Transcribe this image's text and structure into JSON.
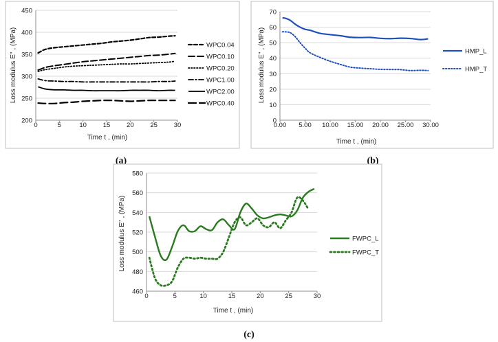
{
  "chart_data": [
    {
      "panel": "(a)",
      "type": "line",
      "xlabel": "Time  t , (min)",
      "ylabel": "Loss modulus E'' , (MPa)",
      "xlim": [
        0,
        30
      ],
      "ylim": [
        200,
        450
      ],
      "xticks": [
        "0",
        "5",
        "10",
        "15",
        "20",
        "25",
        "30"
      ],
      "yticks": [
        "200",
        "250",
        "300",
        "350",
        "400",
        "450"
      ],
      "grid": "horizontal",
      "legend": "right",
      "colors": {
        "line": "#000000",
        "grid": "#d9d9d9",
        "frame": "#bfbfbf"
      },
      "x": [
        0.5,
        2,
        4,
        6,
        8,
        10,
        12,
        14,
        16,
        18,
        20,
        22,
        24,
        26,
        28,
        29.5
      ],
      "series": [
        {
          "name": "WPC0.04",
          "dash": "5,3",
          "width": 2.2,
          "values": [
            353,
            361,
            365,
            367,
            369,
            371,
            373,
            375,
            378,
            380,
            382,
            385,
            388,
            389,
            391,
            392
          ]
        },
        {
          "name": "WPC0.10",
          "dash": "9,4",
          "width": 2.0,
          "values": [
            314,
            320,
            324,
            327,
            330,
            333,
            335,
            337,
            339,
            341,
            343,
            345,
            347,
            348,
            350,
            352
          ]
        },
        {
          "name": "WPC0.20",
          "dash": "1.5,2.5",
          "width": 1.8,
          "values": [
            311,
            315,
            318,
            321,
            323,
            324,
            325,
            326,
            327,
            328,
            328,
            329,
            330,
            331,
            332,
            334
          ]
        },
        {
          "name": "WPC1.00",
          "dash": "7,3,2,3",
          "width": 1.8,
          "values": [
            294,
            290,
            289,
            288,
            288,
            287,
            287,
            287,
            287,
            287,
            287,
            287,
            287,
            288,
            288,
            289
          ]
        },
        {
          "name": "WPC2.00",
          "dash": "",
          "width": 1.8,
          "values": [
            276,
            271,
            269,
            269,
            268,
            268,
            267,
            267,
            267,
            267,
            268,
            268,
            268,
            267,
            268,
            268
          ]
        },
        {
          "name": "WPC0.40",
          "dash": "11,5",
          "width": 2.2,
          "values": [
            239,
            238,
            238,
            240,
            241,
            243,
            244,
            245,
            245,
            244,
            243,
            244,
            245,
            245,
            245,
            245
          ]
        }
      ]
    },
    {
      "panel": "(b)",
      "type": "line",
      "xlabel": "Time  t , (min)",
      "ylabel": "Loss modulus E'' , (MPa)",
      "xlim": [
        0,
        30
      ],
      "ylim": [
        0,
        70
      ],
      "xticks": [
        "0.00",
        "5.00",
        "10.00",
        "15.00",
        "20.00",
        "25.00",
        "30.00"
      ],
      "yticks": [
        "0",
        "10",
        "20",
        "30",
        "40",
        "50",
        "60",
        "70"
      ],
      "grid": "horizontal",
      "legend": "right",
      "colors": {
        "line": "#1f4fbf",
        "grid": "#d9d9d9",
        "frame": "#bfbfbf"
      },
      "x": [
        0.5,
        1,
        2,
        3,
        4,
        5,
        6,
        8,
        10,
        12,
        14,
        16,
        18,
        20,
        22,
        24,
        26,
        28,
        29.5
      ],
      "series": [
        {
          "name": "HMP_L",
          "dash": "",
          "width": 2.2,
          "values": [
            66,
            65.8,
            64.5,
            62,
            60,
            58.6,
            58,
            56,
            55.2,
            54.5,
            53.5,
            53.3,
            53.4,
            52.8,
            52.6,
            52.9,
            52.7,
            52,
            52.5
          ]
        },
        {
          "name": "HMP_T",
          "dash": "1.5,2.5",
          "width": 2.0,
          "values": [
            57,
            57,
            56.5,
            54,
            50,
            46.5,
            43.5,
            40.5,
            38,
            36,
            34.2,
            33.6,
            33.2,
            32.8,
            32.7,
            32.6,
            32,
            32.2,
            32
          ]
        }
      ]
    },
    {
      "panel": "(c)",
      "type": "line",
      "xlabel": "Time  t , (min)",
      "ylabel": "Loss modulus E'' , (MPa)",
      "xlim": [
        0,
        30
      ],
      "ylim": [
        460,
        580
      ],
      "xticks": [
        "0",
        "5",
        "10",
        "15",
        "20",
        "25",
        "30"
      ],
      "yticks": [
        "460",
        "480",
        "500",
        "520",
        "540",
        "560",
        "580"
      ],
      "grid": "horizontal",
      "legend": "right",
      "colors": {
        "line": "#2a7a1f",
        "grid": "#d9d9d9",
        "frame": "#bfbfbf"
      },
      "series": [
        {
          "name": "FWPC_L",
          "dash": "",
          "width": 2.4,
          "x": [
            0.5,
            1.5,
            2.5,
            3.5,
            4.5,
            5.5,
            6.5,
            7.5,
            8.5,
            9.5,
            10.5,
            11.5,
            12.5,
            13.5,
            14.5,
            15.5,
            16.5,
            17.5,
            18.5,
            19.5,
            20.5,
            21.5,
            22.5,
            23.5,
            24.5,
            25.5,
            26.5,
            27.5,
            28.5,
            29.5
          ],
          "values": [
            536,
            515,
            496,
            492,
            505,
            521,
            527,
            521,
            521,
            526,
            523,
            522,
            530,
            533,
            527,
            523,
            540,
            549,
            544,
            537,
            534,
            535,
            537,
            538,
            537,
            536,
            542,
            555,
            561,
            564
          ]
        },
        {
          "name": "FWPC_T",
          "dash": "2,3.5",
          "width": 2.8,
          "x": [
            0.5,
            1.5,
            2.5,
            3.5,
            4.5,
            5.5,
            6.5,
            7.5,
            8.5,
            9.5,
            10.5,
            11.5,
            12.5,
            13.5,
            14.5,
            15.5,
            16.5,
            17.5,
            18.5,
            19.5,
            20.5,
            21.5,
            22.5,
            23.5,
            24.5,
            25.5,
            26.5,
            27.5,
            28.5
          ],
          "values": [
            494,
            473,
            466,
            466,
            470,
            484,
            493,
            494,
            493,
            494,
            493,
            493,
            493,
            500,
            515,
            530,
            535,
            527,
            530,
            534,
            527,
            525,
            530,
            524,
            532,
            540,
            555,
            552,
            543
          ]
        }
      ]
    }
  ]
}
